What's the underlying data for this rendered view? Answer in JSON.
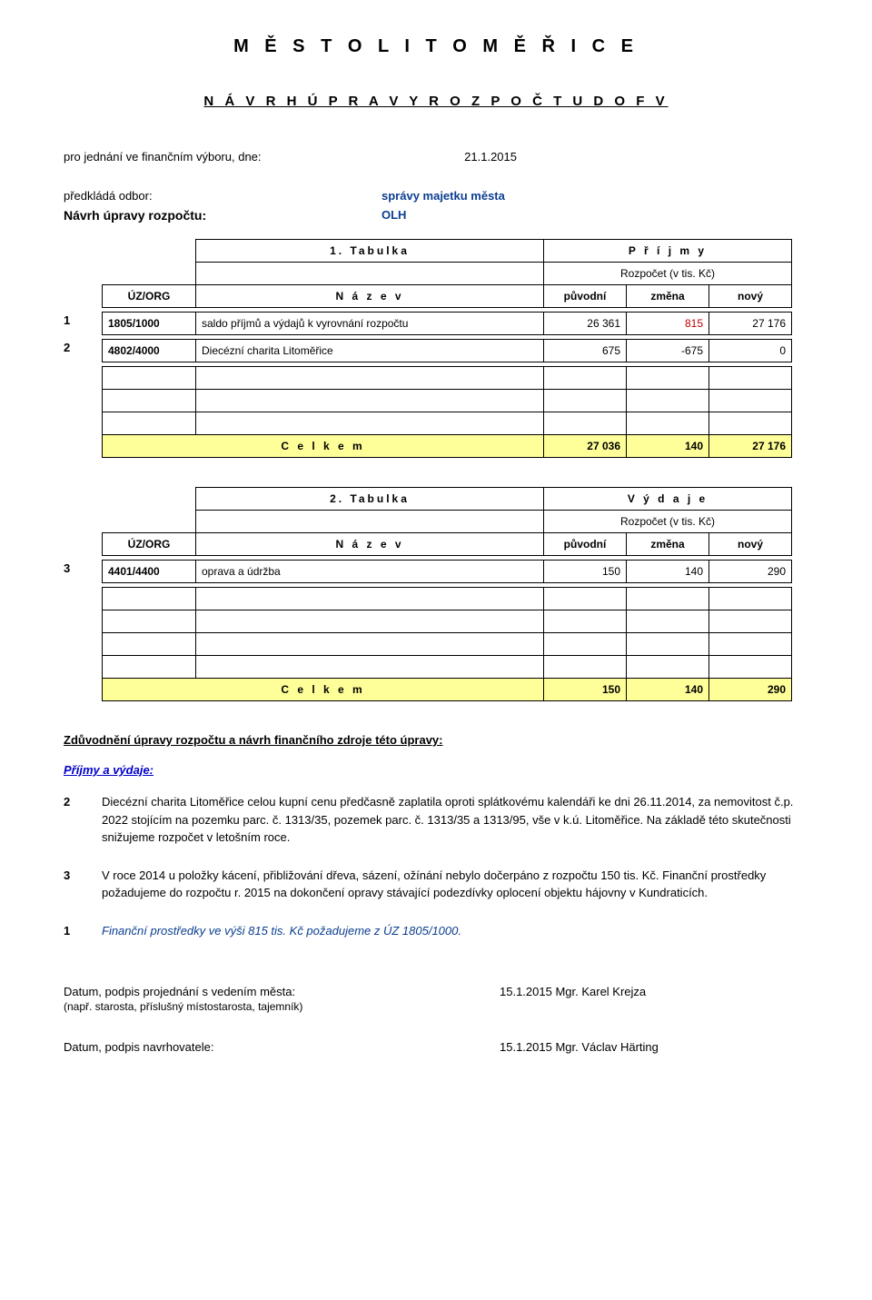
{
  "title": "M Ě S T O   L I T O M Ě Ř I C E",
  "subtitle": "N Á V R H   Ú P R A V Y   R O Z P O Č T U   D O  F V",
  "meeting": {
    "label": "pro jednání ve finančním výboru, dne:",
    "date": "21.1.2015"
  },
  "submit": {
    "label": "předkládá odbor:",
    "dept1": "správy majetku města",
    "dept2": "OLH"
  },
  "proposal_label": "Návrh úpravy rozpočtu:",
  "table1": {
    "tab_no": "1. Tabulka",
    "heading": "P ř í j m y",
    "rozp_label": "Rozpočet (v tis. Kč)",
    "col_uzorg": "ÚZ/ORG",
    "col_nazev": "N á z e v",
    "col_orig": "původní",
    "col_chg": "změna",
    "col_new": "nový",
    "rows": [
      {
        "idx": "1",
        "uz": "1805/1000",
        "desc": "saldo příjmů a výdajů k vyrovnání rozpočtu",
        "orig": "26 361",
        "chg": "815",
        "new": "27 176",
        "chg_red": true
      },
      {
        "idx": "2",
        "uz": "4802/4000",
        "desc": "Diecézní charita Litoměřice",
        "orig": "675",
        "chg": "-675",
        "new": "0",
        "chg_red": false
      }
    ],
    "sum_label": "C e l k e m",
    "sum_orig": "27 036",
    "sum_chg": "140",
    "sum_new": "27 176"
  },
  "table2": {
    "tab_no": "2. Tabulka",
    "heading": "V ý d a j e",
    "rozp_label": "Rozpočet (v tis. Kč)",
    "col_uzorg": "ÚZ/ORG",
    "col_nazev": "N á z e v",
    "col_orig": "původní",
    "col_chg": "změna",
    "col_new": "nový",
    "rows": [
      {
        "idx": "3",
        "uz": "4401/4400",
        "desc": "oprava a údržba",
        "orig": "150",
        "chg": "140",
        "new": "290",
        "chg_red": false
      }
    ],
    "sum_label": "C e l k e m",
    "sum_orig": "150",
    "sum_chg": "140",
    "sum_new": "290"
  },
  "justif_heading": "Zdůvodnění úpravy rozpočtu a návrh finančního zdroje této úpravy:",
  "inc_exp_heading": "Příjmy a výdaje:",
  "notes": [
    {
      "idx": "2",
      "text": "Diecézní charita Litoměřice celou kupní cenu předčasně zaplatila oproti splátkovému kalendáři ke dni 26.11.2014, za nemovitost č.p. 2022 stojícím na pozemku parc. č. 1313/35, pozemek parc. č. 1313/35 a 1313/95, vše v k.ú. Litoměřice. Na základě této skutečnosti snižujeme rozpočet v letošním roce.",
      "blue": false
    },
    {
      "idx": "3",
      "text": "V roce 2014 u položky kácení, přibližování dřeva, sázení, ožínání nebylo dočerpáno z rozpočtu 150 tis. Kč. Finanční prostředky požadujeme do rozpočtu r. 2015 na dokončení opravy stávající podezdívky oplocení objektu hájovny v Kundraticích.",
      "blue": false
    },
    {
      "idx": "1",
      "text": "Finanční prostředky ve výši 815 tis. Kč požadujeme z ÚZ 1805/1000.",
      "blue": true
    }
  ],
  "footer": {
    "row1_label": "Datum, podpis projednání s vedením města:",
    "row1_value": "15.1.2015 Mgr. Karel Krejza",
    "row1_sub": "(např. starosta, příslušný místostarosta, tajemník)",
    "row2_label": "Datum, podpis navrhovatele:",
    "row2_value": "15.1.2015 Mgr. Václav Härting"
  },
  "colors": {
    "highlight_bg": "#ffff99",
    "blue_text": "#0b3e91",
    "red_text": "#c00000",
    "link_blue": "#0000cc"
  }
}
